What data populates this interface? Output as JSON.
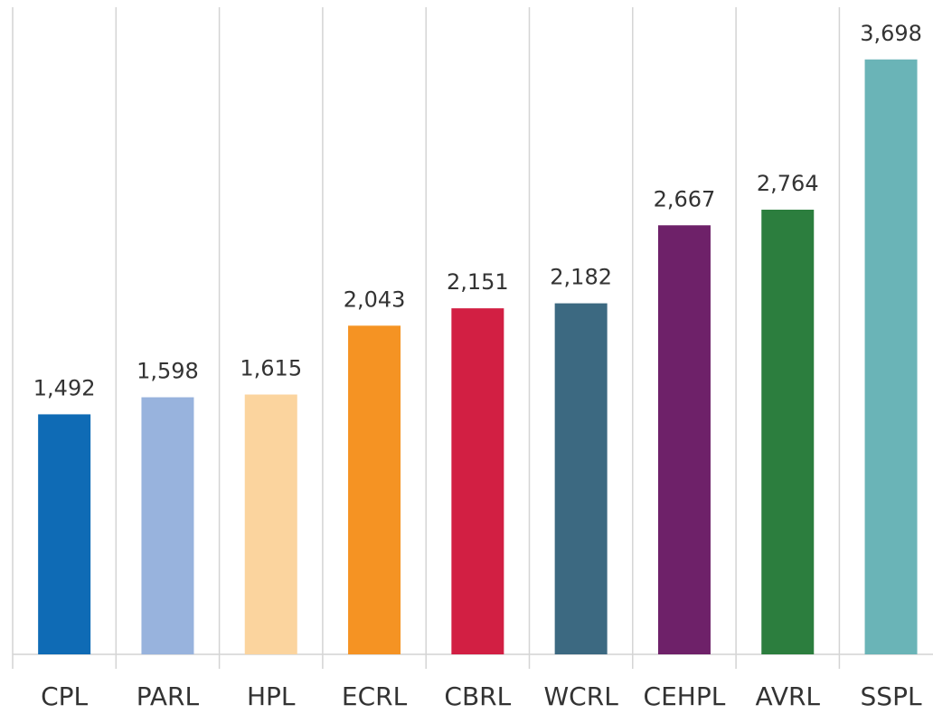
{
  "chart_data": {
    "type": "bar",
    "categories": [
      "CPL",
      "PARL",
      "HPL",
      "ECRL",
      "CBRL",
      "WCRL",
      "CEHPL",
      "AVRL",
      "SSPL"
    ],
    "values": [
      1492,
      1598,
      1615,
      2043,
      2151,
      2182,
      2667,
      2764,
      3698
    ],
    "value_labels": [
      "1,492",
      "1,598",
      "1,615",
      "2,043",
      "2,151",
      "2,182",
      "2,667",
      "2,764",
      "3,698"
    ],
    "colors": [
      "#0f6bb5",
      "#98b3dd",
      "#fbd49e",
      "#f59323",
      "#d21f43",
      "#3c6981",
      "#6e2169",
      "#2c7e3e",
      "#6ab4b7"
    ],
    "ylim": [
      0,
      4000
    ]
  }
}
